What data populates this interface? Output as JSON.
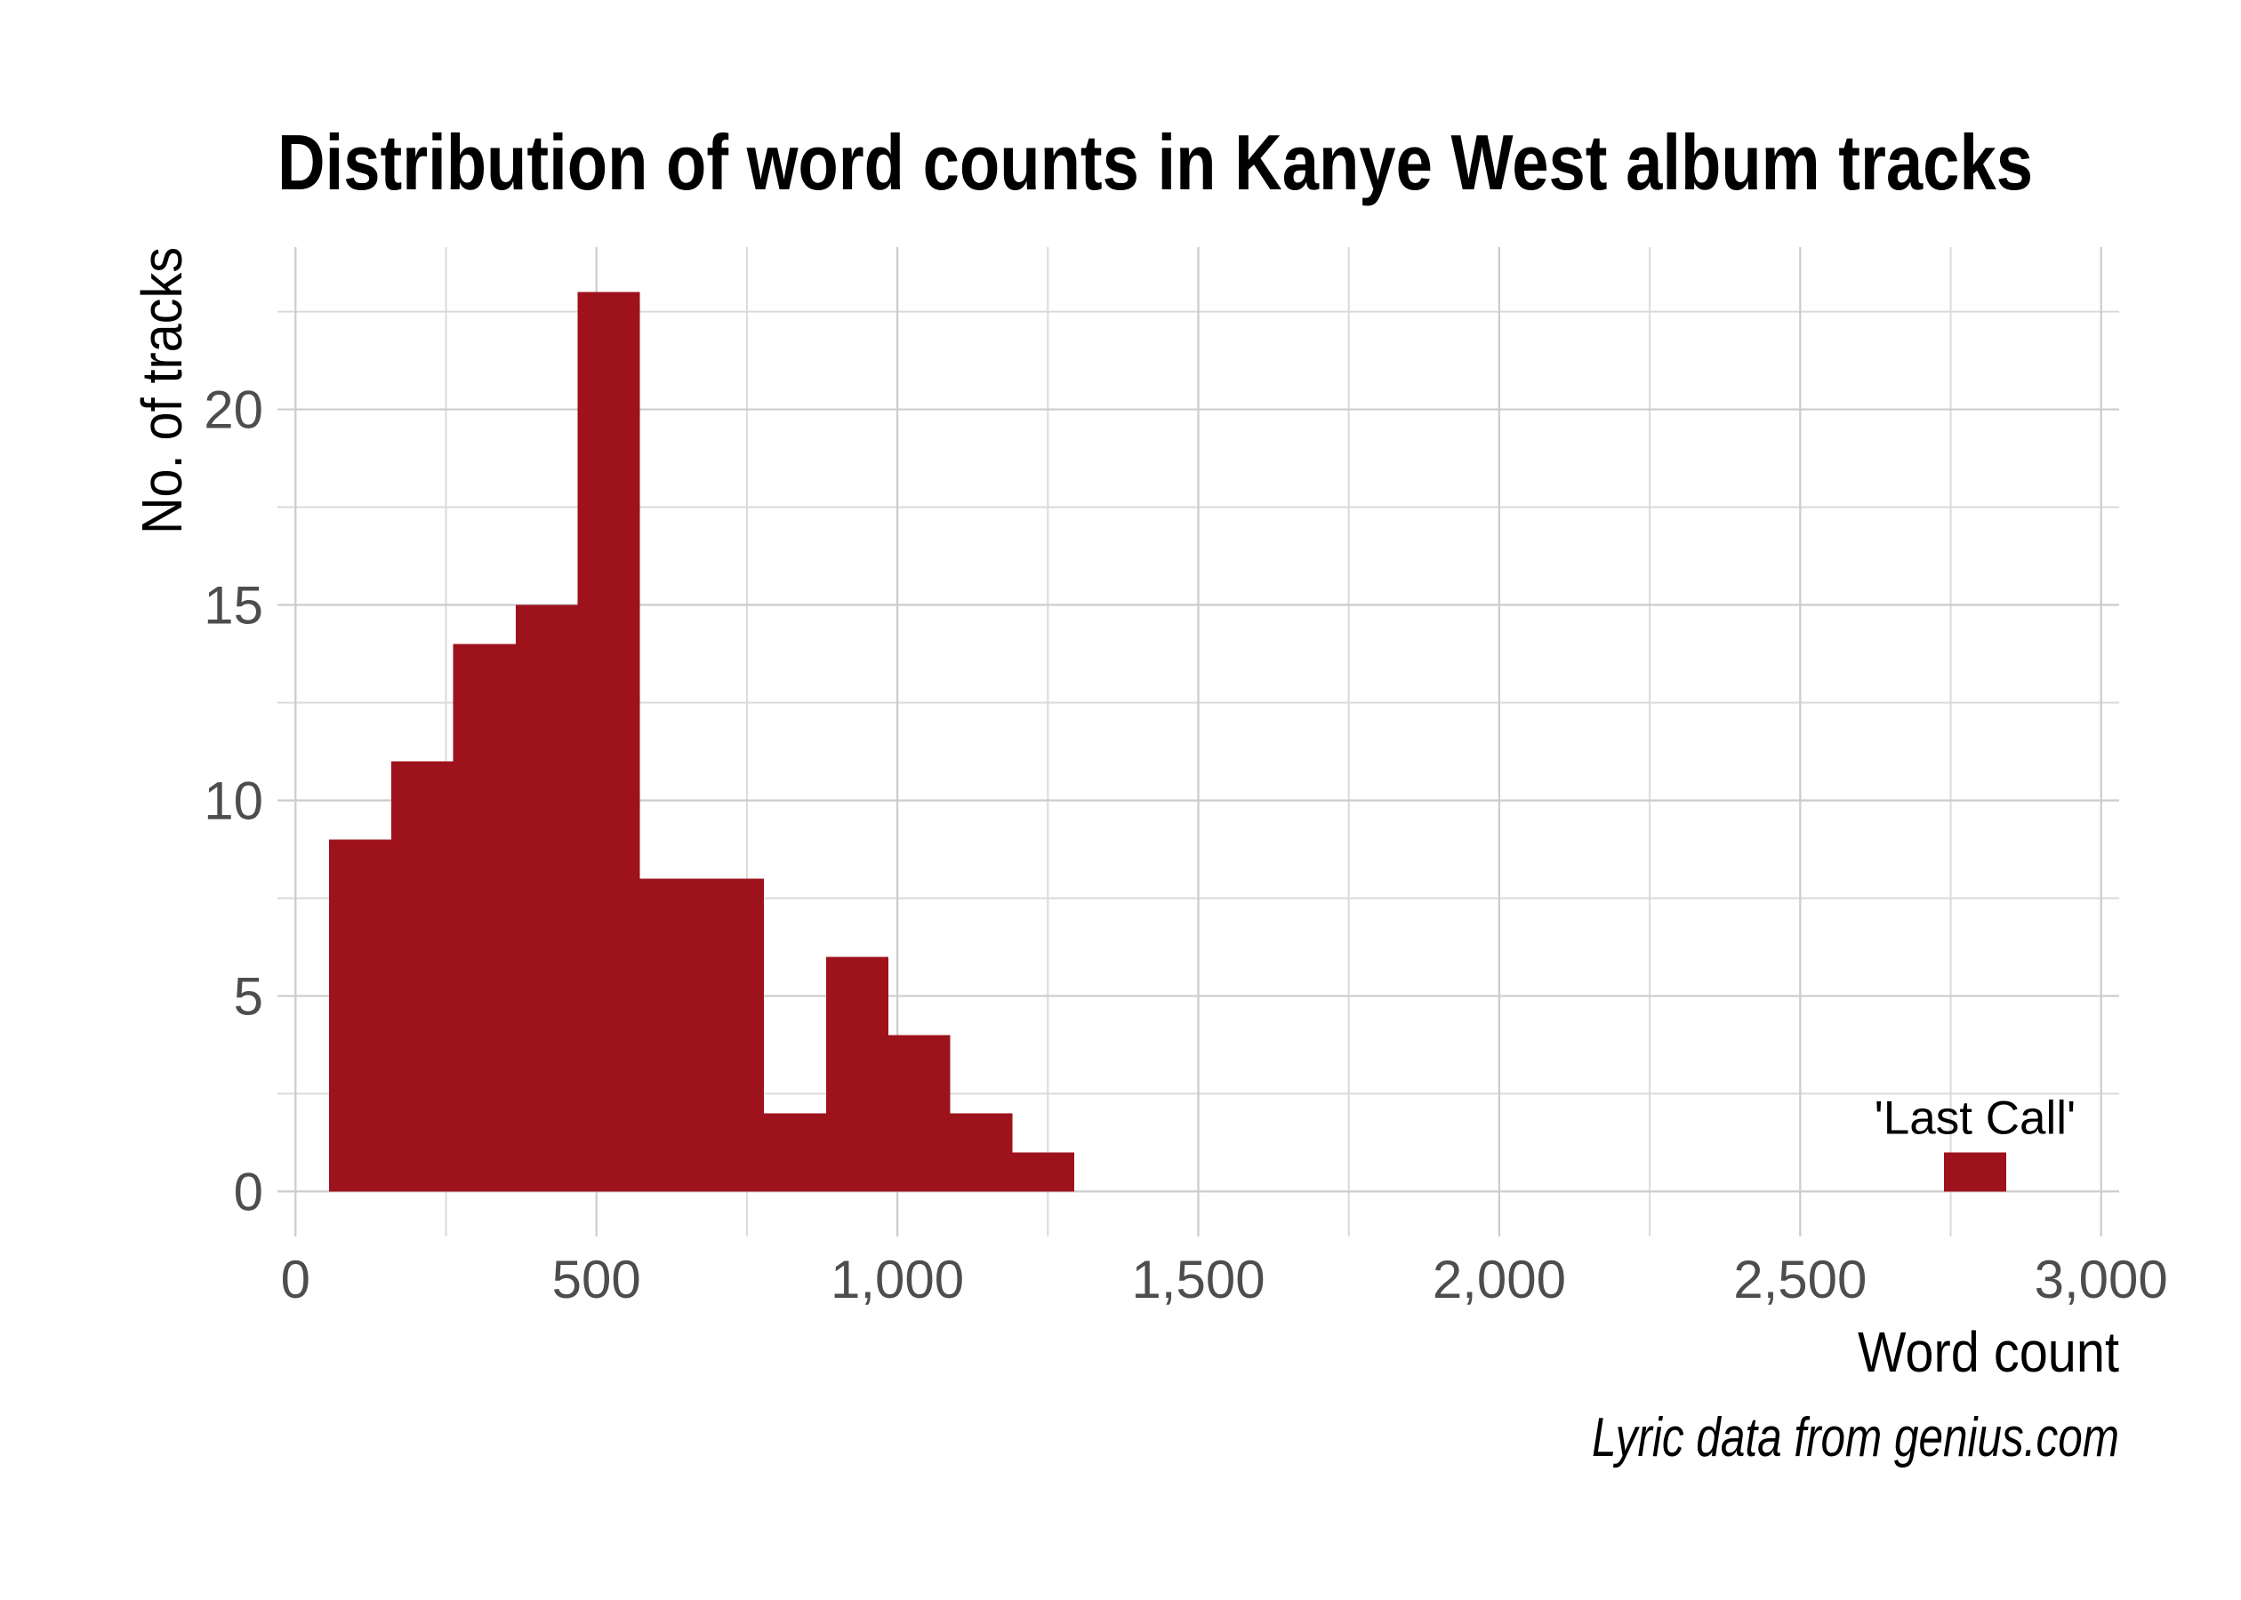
{
  "chart_data": {
    "type": "bar",
    "title": "Distribution of word counts in Kanye West album tracks",
    "xlabel": "Word count",
    "ylabel": "No. of tracks",
    "caption": "Lyric data from genius.com",
    "bar_color": "#9E121C",
    "grid": true,
    "xlim": [
      -30,
      3030
    ],
    "ylim": [
      -1.15,
      24.15
    ],
    "x_ticks": [
      {
        "value": 0,
        "label": "0"
      },
      {
        "value": 500,
        "label": "500"
      },
      {
        "value": 1000,
        "label": "1,000"
      },
      {
        "value": 1500,
        "label": "1,500"
      },
      {
        "value": 2000,
        "label": "2,000"
      },
      {
        "value": 2500,
        "label": "2,500"
      },
      {
        "value": 3000,
        "label": "3,000"
      }
    ],
    "y_ticks": [
      {
        "value": 0,
        "label": "0"
      },
      {
        "value": 5,
        "label": "5"
      },
      {
        "value": 10,
        "label": "10"
      },
      {
        "value": 15,
        "label": "15"
      },
      {
        "value": 20,
        "label": "20"
      }
    ],
    "bins": [
      {
        "x_start": 56,
        "x_end": 159,
        "count": 9
      },
      {
        "x_start": 159,
        "x_end": 262,
        "count": 11
      },
      {
        "x_start": 262,
        "x_end": 366,
        "count": 14
      },
      {
        "x_start": 366,
        "x_end": 469,
        "count": 15
      },
      {
        "x_start": 469,
        "x_end": 572,
        "count": 23
      },
      {
        "x_start": 572,
        "x_end": 675,
        "count": 8
      },
      {
        "x_start": 675,
        "x_end": 778,
        "count": 8
      },
      {
        "x_start": 778,
        "x_end": 882,
        "count": 2
      },
      {
        "x_start": 882,
        "x_end": 985,
        "count": 6
      },
      {
        "x_start": 985,
        "x_end": 1088,
        "count": 4
      },
      {
        "x_start": 1088,
        "x_end": 1191,
        "count": 2
      },
      {
        "x_start": 1191,
        "x_end": 1294,
        "count": 1
      },
      {
        "x_start": 2739,
        "x_end": 2842,
        "count": 1,
        "label": "'Last Call'"
      }
    ]
  }
}
